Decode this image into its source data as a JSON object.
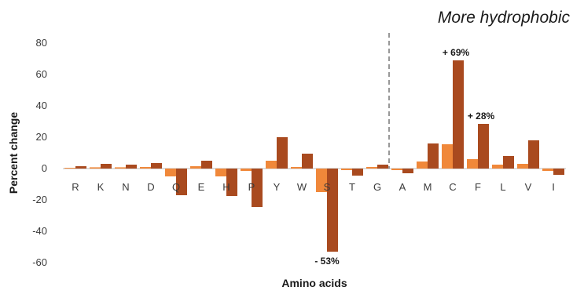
{
  "chart_data": {
    "type": "bar",
    "xlabel": "Amino acids",
    "ylabel": "Percent change",
    "ylim": [
      -60,
      80
    ],
    "yticks": [
      -60,
      -40,
      -20,
      0,
      20,
      40,
      60,
      80
    ],
    "grid": false,
    "legend": "none",
    "categories": [
      "R",
      "K",
      "N",
      "D",
      "Q",
      "E",
      "H",
      "P",
      "Y",
      "W",
      "S",
      "T",
      "G",
      "A",
      "M",
      "C",
      "F",
      "L",
      "V",
      "I"
    ],
    "series": [
      {
        "color": "#f0883a",
        "values": [
          0.5,
          0.8,
          0.8,
          1,
          -5,
          1.5,
          -5,
          -1.5,
          5,
          1,
          -15,
          -1,
          1,
          -1,
          4.5,
          15.5,
          6,
          2.5,
          3,
          -1.5
        ]
      },
      {
        "color": "#a94a1f",
        "values": [
          1.5,
          3,
          2.5,
          3.5,
          -17,
          5,
          -17.5,
          -24.5,
          20,
          9.5,
          -53,
          -4.5,
          2.5,
          -3,
          16,
          69,
          28.5,
          8,
          18,
          -4
        ]
      }
    ],
    "divider_after": "G",
    "region_label": "More hydrophobic",
    "annotations": [
      {
        "category": "C",
        "value": 69,
        "text": "+ 69%"
      },
      {
        "category": "F",
        "value": 28.5,
        "text": "+ 28%"
      },
      {
        "category": "S",
        "value": -53,
        "text": "- 53%"
      }
    ]
  }
}
